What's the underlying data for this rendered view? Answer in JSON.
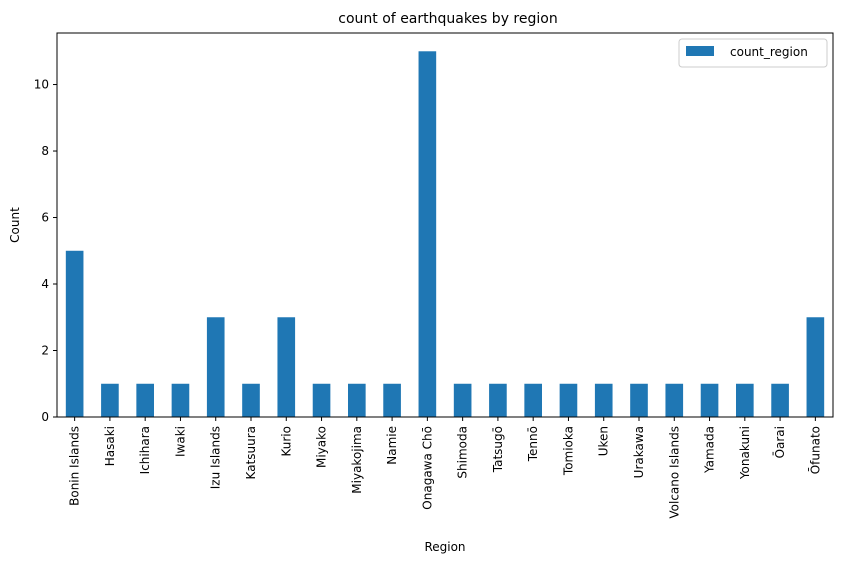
{
  "chart_data": {
    "type": "bar",
    "title": "count of earthquakes by region",
    "xlabel": "Region",
    "ylabel": "Count",
    "categories": [
      "Bonin Islands",
      "Hasaki",
      "Ichihara",
      "Iwaki",
      "Izu Islands",
      "Katsuura",
      "Kurio",
      "Miyako",
      "Miyakojima",
      "Namie",
      "Onagawa Chō",
      "Shimoda",
      "Tatsugō",
      "Tennō",
      "Tomioka",
      "Uken",
      "Urakawa",
      "Volcano Islands",
      "Yamada",
      "Yonakuni",
      "Ōarai",
      "Ōfunato"
    ],
    "series": [
      {
        "name": "count_region",
        "color": "#1f77b4",
        "values": [
          5,
          1,
          1,
          1,
          3,
          1,
          3,
          1,
          1,
          1,
          11,
          1,
          1,
          1,
          1,
          1,
          1,
          1,
          1,
          1,
          1,
          3
        ]
      }
    ],
    "ylim": [
      0,
      11.55
    ],
    "yticks": [
      0,
      2,
      4,
      6,
      8,
      10
    ],
    "grid": false,
    "legend": "top-right"
  }
}
